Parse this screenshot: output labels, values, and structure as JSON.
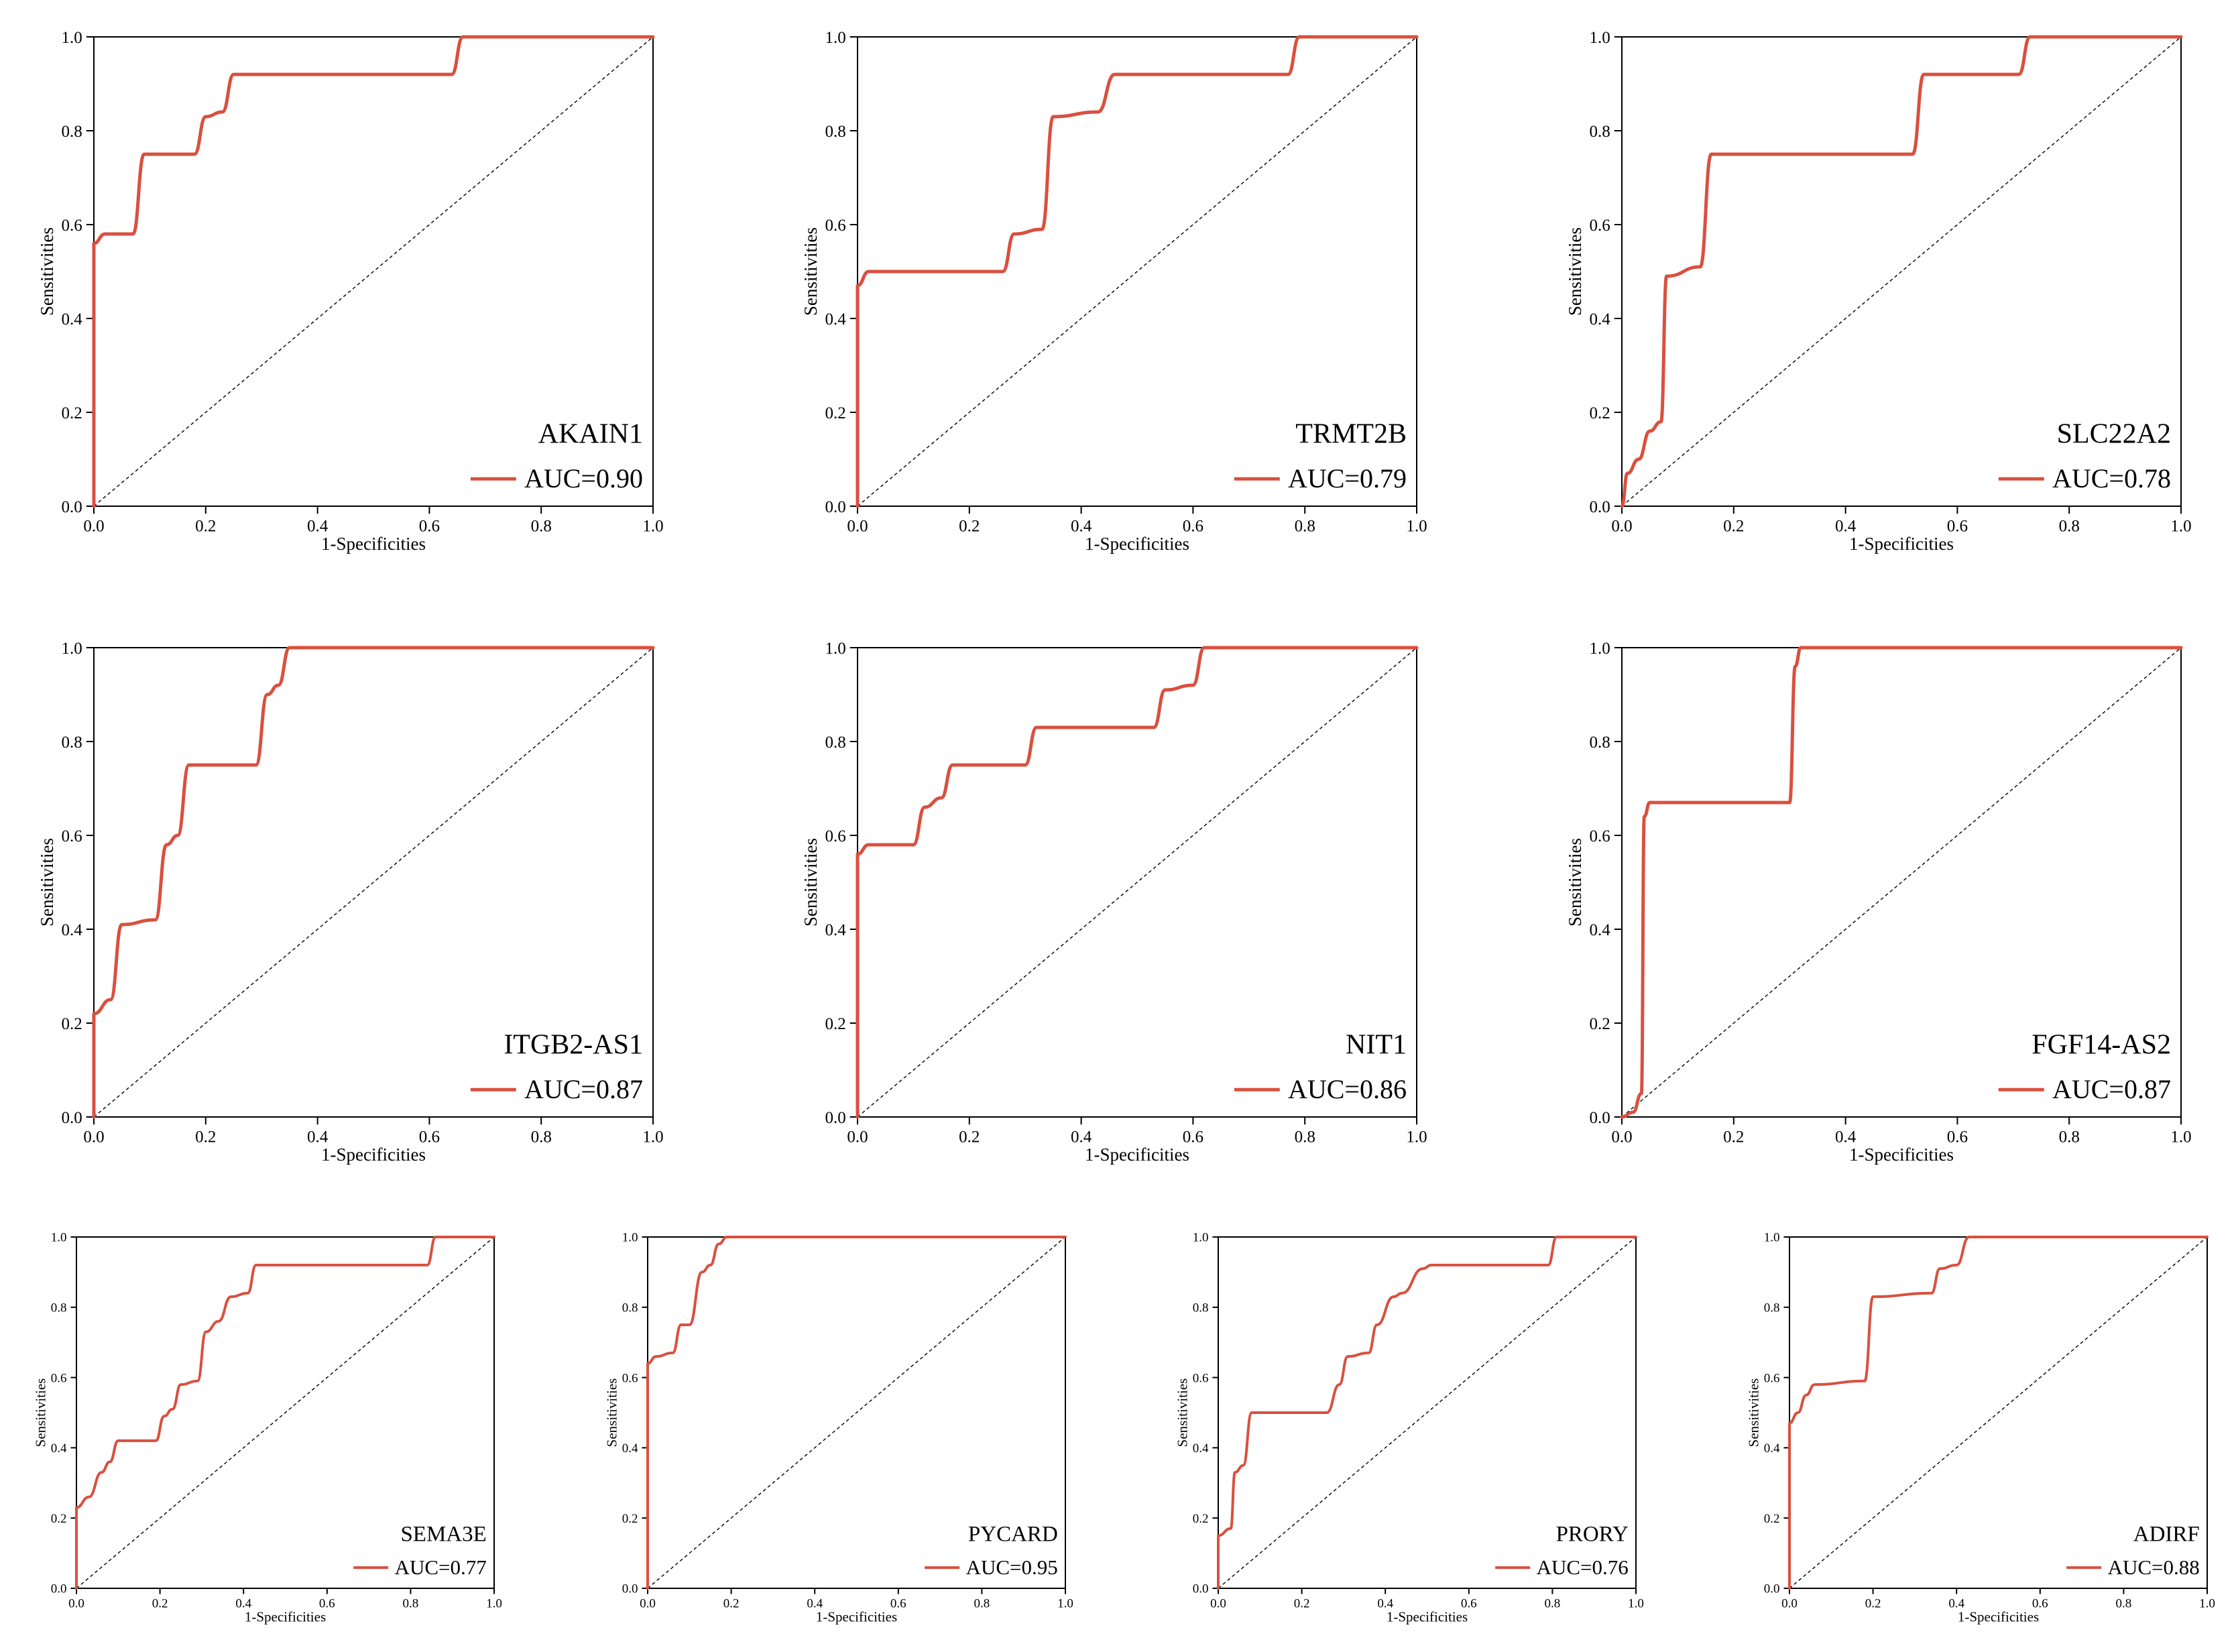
{
  "figure": {
    "accent_color": "#d9503f",
    "reference_color": "#000000",
    "axis_color": "#000000"
  },
  "chart_data": [
    {
      "type": "line",
      "title": "AKAIN1",
      "xlabel": "1-Specificities",
      "ylabel": "Sensitivities",
      "xlim": [
        0,
        1
      ],
      "ylim": [
        0,
        1
      ],
      "ticks": [
        "0.0",
        "0.2",
        "0.4",
        "0.6",
        "0.8",
        "1.0"
      ],
      "legend": "AUC=0.90",
      "legend_position": "bottom-right",
      "diagonal_reference": true,
      "series": [
        {
          "x": [
            0,
            0,
            0.02,
            0.07,
            0.09,
            0.18,
            0.2,
            0.23,
            0.25,
            0.64,
            0.66,
            1
          ],
          "y": [
            0,
            0.56,
            0.58,
            0.58,
            0.75,
            0.75,
            0.83,
            0.84,
            0.92,
            0.92,
            1,
            1
          ]
        }
      ]
    },
    {
      "type": "line",
      "title": "TRMT2B",
      "xlabel": "1-Specificities",
      "ylabel": "Sensitivities",
      "xlim": [
        0,
        1
      ],
      "ylim": [
        0,
        1
      ],
      "ticks": [
        "0.0",
        "0.2",
        "0.4",
        "0.6",
        "0.8",
        "1.0"
      ],
      "legend": "AUC=0.79",
      "legend_position": "bottom-right",
      "diagonal_reference": true,
      "series": [
        {
          "x": [
            0,
            0,
            0.02,
            0.26,
            0.28,
            0.33,
            0.35,
            0.43,
            0.46,
            0.77,
            0.79,
            1
          ],
          "y": [
            0,
            0.47,
            0.5,
            0.5,
            0.58,
            0.59,
            0.83,
            0.84,
            0.92,
            0.92,
            1,
            1
          ]
        }
      ]
    },
    {
      "type": "line",
      "title": "SLC22A2",
      "xlabel": "1-Specificities",
      "ylabel": "Sensitivities",
      "xlim": [
        0,
        1
      ],
      "ylim": [
        0,
        1
      ],
      "ticks": [
        "0.0",
        "0.2",
        "0.4",
        "0.6",
        "0.8",
        "1.0"
      ],
      "legend": "AUC=0.78",
      "legend_position": "bottom-right",
      "diagonal_reference": true,
      "series": [
        {
          "x": [
            0,
            0.01,
            0.03,
            0.05,
            0.07,
            0.08,
            0.14,
            0.16,
            0.52,
            0.54,
            0.71,
            0.73,
            1
          ],
          "y": [
            0,
            0.07,
            0.1,
            0.16,
            0.18,
            0.49,
            0.51,
            0.75,
            0.75,
            0.92,
            0.92,
            1,
            1
          ]
        }
      ]
    },
    {
      "type": "line",
      "title": "ITGB2-AS1",
      "xlabel": "1-Specificities",
      "ylabel": "Sensitivities",
      "xlim": [
        0,
        1
      ],
      "ylim": [
        0,
        1
      ],
      "ticks": [
        "0.0",
        "0.2",
        "0.4",
        "0.6",
        "0.8",
        "1.0"
      ],
      "legend": "AUC=0.87",
      "legend_position": "bottom-right",
      "diagonal_reference": true,
      "series": [
        {
          "x": [
            0,
            0,
            0.03,
            0.05,
            0.11,
            0.13,
            0.15,
            0.17,
            0.29,
            0.31,
            0.33,
            0.35,
            1
          ],
          "y": [
            0,
            0.22,
            0.25,
            0.41,
            0.42,
            0.58,
            0.6,
            0.75,
            0.75,
            0.9,
            0.92,
            1,
            1
          ]
        }
      ]
    },
    {
      "type": "line",
      "title": "NIT1",
      "xlabel": "1-Specificities",
      "ylabel": "Sensitivities",
      "xlim": [
        0,
        1
      ],
      "ylim": [
        0,
        1
      ],
      "ticks": [
        "0.0",
        "0.2",
        "0.4",
        "0.6",
        "0.8",
        "1.0"
      ],
      "legend": "AUC=0.86",
      "legend_position": "bottom-right",
      "diagonal_reference": true,
      "series": [
        {
          "x": [
            0,
            0,
            0.02,
            0.1,
            0.12,
            0.15,
            0.17,
            0.3,
            0.32,
            0.53,
            0.55,
            0.6,
            0.62,
            1
          ],
          "y": [
            0,
            0.56,
            0.58,
            0.58,
            0.66,
            0.68,
            0.75,
            0.75,
            0.83,
            0.83,
            0.91,
            0.92,
            1,
            1
          ]
        }
      ]
    },
    {
      "type": "line",
      "title": "FGF14-AS2",
      "xlabel": "1-Specificities",
      "ylabel": "Sensitivities",
      "xlim": [
        0,
        1
      ],
      "ylim": [
        0,
        1
      ],
      "ticks": [
        "0.0",
        "0.2",
        "0.4",
        "0.6",
        "0.8",
        "1.0"
      ],
      "legend": "AUC=0.87",
      "legend_position": "bottom-right",
      "diagonal_reference": true,
      "series": [
        {
          "x": [
            0,
            0.02,
            0.035,
            0.04,
            0.05,
            0.3,
            0.31,
            0.32,
            1
          ],
          "y": [
            0,
            0.01,
            0.05,
            0.64,
            0.67,
            0.67,
            0.96,
            1,
            1
          ]
        }
      ]
    },
    {
      "type": "line",
      "title": "SEMA3E",
      "xlabel": "1-Specificities",
      "ylabel": "Sensitivities",
      "xlim": [
        0,
        1
      ],
      "ylim": [
        0,
        1
      ],
      "ticks": [
        "0.0",
        "0.2",
        "0.4",
        "0.6",
        "0.8",
        "1.0"
      ],
      "legend": "AUC=0.77",
      "legend_position": "bottom-right",
      "diagonal_reference": true,
      "series": [
        {
          "x": [
            0,
            0,
            0.03,
            0.06,
            0.08,
            0.1,
            0.19,
            0.21,
            0.23,
            0.25,
            0.29,
            0.31,
            0.34,
            0.37,
            0.41,
            0.43,
            0.84,
            0.86,
            1
          ],
          "y": [
            0,
            0.23,
            0.26,
            0.33,
            0.36,
            0.42,
            0.42,
            0.49,
            0.51,
            0.58,
            0.59,
            0.73,
            0.76,
            0.83,
            0.84,
            0.92,
            0.92,
            1,
            1
          ]
        }
      ]
    },
    {
      "type": "line",
      "title": "PYCARD",
      "xlabel": "1-Specificities",
      "ylabel": "Sensitivities",
      "xlim": [
        0,
        1
      ],
      "ylim": [
        0,
        1
      ],
      "ticks": [
        "0.0",
        "0.2",
        "0.4",
        "0.6",
        "0.8",
        "1.0"
      ],
      "legend": "AUC=0.95",
      "legend_position": "bottom-right",
      "diagonal_reference": true,
      "series": [
        {
          "x": [
            0,
            0,
            0.02,
            0.06,
            0.08,
            0.1,
            0.13,
            0.15,
            0.17,
            0.19,
            1
          ],
          "y": [
            0,
            0.64,
            0.66,
            0.67,
            0.75,
            0.75,
            0.9,
            0.92,
            0.98,
            1,
            1
          ]
        }
      ]
    },
    {
      "type": "line",
      "title": "PRORY",
      "xlabel": "1-Specificities",
      "ylabel": "Sensitivities",
      "xlim": [
        0,
        1
      ],
      "ylim": [
        0,
        1
      ],
      "ticks": [
        "0.0",
        "0.2",
        "0.4",
        "0.6",
        "0.8",
        "1.0"
      ],
      "legend": "AUC=0.76",
      "legend_position": "bottom-right",
      "diagonal_reference": true,
      "series": [
        {
          "x": [
            0,
            0,
            0.03,
            0.04,
            0.06,
            0.08,
            0.26,
            0.29,
            0.31,
            0.36,
            0.38,
            0.42,
            0.44,
            0.49,
            0.51,
            0.79,
            0.81,
            1
          ],
          "y": [
            0,
            0.15,
            0.17,
            0.33,
            0.35,
            0.5,
            0.5,
            0.58,
            0.66,
            0.67,
            0.75,
            0.83,
            0.84,
            0.91,
            0.92,
            0.92,
            1,
            1
          ]
        }
      ]
    },
    {
      "type": "line",
      "title": "ADIRF",
      "xlabel": "1-Specificities",
      "ylabel": "Sensitivities",
      "xlim": [
        0,
        1
      ],
      "ylim": [
        0,
        1
      ],
      "ticks": [
        "0.0",
        "0.2",
        "0.4",
        "0.6",
        "0.8",
        "1.0"
      ],
      "legend": "AUC=0.88",
      "legend_position": "bottom-right",
      "diagonal_reference": true,
      "series": [
        {
          "x": [
            0,
            0,
            0.02,
            0.04,
            0.06,
            0.18,
            0.2,
            0.34,
            0.36,
            0.4,
            0.43,
            1
          ],
          "y": [
            0,
            0.47,
            0.5,
            0.55,
            0.58,
            0.59,
            0.83,
            0.84,
            0.91,
            0.92,
            1,
            1
          ]
        }
      ]
    }
  ]
}
